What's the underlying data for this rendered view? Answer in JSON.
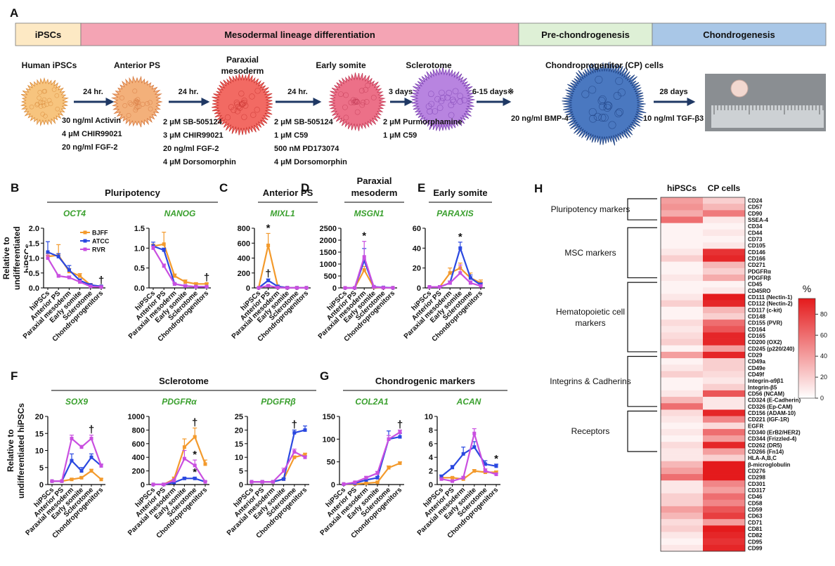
{
  "scheme": {
    "panel": "A",
    "stages": [
      {
        "label": "iPSCs",
        "color": "#fde9c4"
      },
      {
        "label": "Mesodermal lineage differentiation",
        "color": "#f4a4b4"
      },
      {
        "label": "Pre-chondrogenesis",
        "color": "#def0d6"
      },
      {
        "label": "Chondrogenesis",
        "color": "#a9c7e7"
      }
    ],
    "cells": [
      "Human iPSCs",
      "Anterior PS",
      "Paraxial mesoderm",
      "Early somite",
      "Sclerotome",
      "Chondroprogenitor (CP) cells"
    ],
    "steps": [
      {
        "time": "24 hr.",
        "conditions": [
          "30 ng/ml Activin",
          "4 μM  CHIR99021",
          "20 ng/ml FGF-2"
        ]
      },
      {
        "time": "24 hr.",
        "conditions": [
          "2 μM  SB-505124",
          "3 μM  CHIR99021",
          "20 ng/ml FGF-2",
          "4 μM Dorsomorphin"
        ]
      },
      {
        "time": "24 hr.",
        "conditions": [
          "2 μM  SB-505124",
          "1 μM  C59",
          "500 nM PD173074",
          "4 μM Dorsomorphin"
        ]
      },
      {
        "time": "3 days",
        "conditions": [
          "2 μM  Purmorphamine",
          "1 μM  C59"
        ]
      },
      {
        "time": "6-15 days※",
        "conditions": [
          "20 ng/ml BMP-4"
        ]
      },
      {
        "time": "28 days",
        "conditions": [
          "10 ng/ml TGF-β3"
        ]
      }
    ]
  },
  "categories": [
    "hiPSCs",
    "Anterior PS",
    "Paraxial mesoderm",
    "Early somite",
    "Sclerotome",
    "Chondroprogenitors"
  ],
  "legend": [
    {
      "name": "BJFF",
      "color": "#f39a2c"
    },
    {
      "name": "ATCC",
      "color": "#2a48e0"
    },
    {
      "name": "RVR",
      "color": "#c94fe0"
    }
  ],
  "chart_data": [
    {
      "type": "line",
      "panel": "B",
      "panel_title": "Pluripotency",
      "gene": "OCT4",
      "ylabel": "Relative to undifferentiated hiPSCs",
      "show_legend": true,
      "ylim": [
        0,
        2
      ],
      "yticks": [
        {
          "value": 0,
          "label": "0.0"
        },
        0.5,
        {
          "value": 1,
          "label": "1.0"
        },
        1.5,
        {
          "value": 2,
          "label": "2.0"
        }
      ],
      "series": [
        {
          "values": [
            1.05,
            1.1,
            0.55,
            0.4,
            0.1,
            0.05
          ],
          "errors": [
            0.1,
            0.35,
            0.1,
            0.08,
            0.05,
            0.02
          ]
        },
        {
          "values": [
            1.2,
            1.05,
            0.6,
            0.25,
            0.1,
            0.05
          ],
          "errors": [
            0.35,
            0.1,
            0.15,
            0.05,
            0.03,
            0.02
          ]
        },
        {
          "values": [
            1.0,
            0.4,
            0.35,
            0.2,
            0.05,
            0.03
          ],
          "errors": [
            0.1,
            0.05,
            0.05,
            0.05,
            0.02,
            0.01
          ]
        }
      ],
      "annotations": [
        {
          "text": "†",
          "category": "Chondroprogenitors",
          "series": "BJFF"
        }
      ]
    },
    {
      "type": "line",
      "gene": "NANOG",
      "ylim": [
        0,
        1.5
      ],
      "yticks": [
        {
          "value": 0,
          "label": "0.0"
        },
        0.5,
        {
          "value": 1,
          "label": "1.0"
        },
        1.5
      ],
      "series": [
        {
          "values": [
            1.05,
            1.1,
            0.3,
            0.15,
            0.1,
            0.1
          ],
          "errors": [
            0.05,
            0.3,
            0.05,
            0.05,
            0.03,
            0.02
          ]
        },
        {
          "values": [
            1.05,
            0.95,
            0.1,
            0.05,
            0.03,
            0.03
          ],
          "errors": [
            0.1,
            0.05,
            0.02,
            0.02,
            0.01,
            0.01
          ]
        },
        {
          "values": [
            1.0,
            0.55,
            0.1,
            0.05,
            0.03,
            0.03
          ],
          "errors": [
            0.05,
            0.05,
            0.02,
            0.01,
            0.01,
            0.01
          ]
        }
      ],
      "annotations": [
        {
          "text": "†",
          "category": "Chondroprogenitors",
          "series": "BJFF"
        }
      ]
    },
    {
      "type": "line",
      "panel": "C",
      "panel_title": "Anterior PS",
      "gene": "MIXL1",
      "ylim": [
        0,
        800
      ],
      "yticks": [
        0,
        200,
        400,
        600,
        800
      ],
      "series": [
        {
          "values": [
            1,
            570,
            20,
            3,
            2,
            2
          ],
          "errors": [
            0,
            160,
            10,
            1,
            1,
            1
          ]
        },
        {
          "values": [
            1,
            100,
            20,
            3,
            2,
            2
          ],
          "errors": [
            0,
            20,
            5,
            1,
            1,
            1
          ]
        },
        {
          "values": [
            1,
            30,
            5,
            2,
            1,
            1
          ],
          "errors": [
            0,
            10,
            2,
            1,
            0,
            0
          ]
        }
      ],
      "annotations": [
        {
          "text": "*",
          "category": "Anterior PS",
          "series": "BJFF"
        },
        {
          "text": "†",
          "category": "Anterior PS",
          "series": "ATCC"
        }
      ]
    },
    {
      "type": "line",
      "panel": "D",
      "panel_title": "Paraxial mesoderm",
      "gene": "MSGN1",
      "ylim": [
        0,
        2500
      ],
      "yticks": [
        0,
        500,
        1000,
        1500,
        2000,
        2500
      ],
      "series": [
        {
          "values": [
            1,
            1,
            750,
            30,
            10,
            5
          ],
          "errors": [
            0,
            0,
            150,
            10,
            5,
            2
          ]
        },
        {
          "values": [
            1,
            1,
            1150,
            50,
            20,
            5
          ],
          "errors": [
            0,
            0,
            500,
            15,
            5,
            2
          ]
        },
        {
          "values": [
            1,
            1,
            1300,
            40,
            10,
            5
          ],
          "errors": [
            0,
            0,
            650,
            10,
            5,
            2
          ]
        }
      ],
      "annotations": [
        {
          "text": "*",
          "category": "Paraxial mesoderm",
          "series": "RVR"
        }
      ]
    },
    {
      "type": "line",
      "panel": "E",
      "panel_title": "Early somite",
      "gene": "PARAXIS",
      "ylim": [
        0,
        60
      ],
      "yticks": [
        0,
        20,
        40,
        60
      ],
      "series": [
        {
          "values": [
            1,
            1,
            15,
            20,
            10,
            5
          ],
          "errors": [
            0,
            0,
            5,
            5,
            5,
            3
          ]
        },
        {
          "values": [
            1,
            1,
            5,
            40,
            10,
            3
          ],
          "errors": [
            0,
            0,
            2,
            6,
            3,
            2
          ]
        },
        {
          "values": [
            1,
            1,
            5,
            15,
            5,
            2
          ],
          "errors": [
            0,
            0,
            2,
            8,
            2,
            1
          ]
        }
      ],
      "annotations": [
        {
          "text": "*",
          "category": "Early somite",
          "series": "ATCC"
        }
      ]
    },
    {
      "type": "line",
      "panel": "F",
      "panel_title": "Sclerotome",
      "gene": "SOX9",
      "ylabel": "Relative to undifferentiated hiPSCs",
      "ylim": [
        0,
        20
      ],
      "yticks": [
        0,
        5,
        10,
        15,
        20
      ],
      "series": [
        {
          "values": [
            1,
            1,
            1.5,
            2,
            4,
            1.5
          ],
          "errors": [
            0,
            0,
            0.3,
            0.3,
            0.5,
            0.3
          ]
        },
        {
          "values": [
            1,
            1,
            7,
            4,
            8,
            5.5
          ],
          "errors": [
            0,
            0,
            2,
            1,
            1,
            0.5
          ]
        },
        {
          "values": [
            1,
            1,
            13.5,
            11,
            13.5,
            5.5
          ],
          "errors": [
            0,
            0,
            1,
            0.5,
            1,
            0.5
          ]
        }
      ],
      "annotations": [
        {
          "text": "†",
          "category": "Sclerotome",
          "series": "RVR"
        }
      ]
    },
    {
      "type": "line",
      "gene": "PDGFRα",
      "ylim": [
        0,
        1000
      ],
      "yticks": [
        0,
        200,
        400,
        600,
        800,
        1000
      ],
      "series": [
        {
          "values": [
            1,
            1,
            80,
            550,
            700,
            300
          ],
          "errors": [
            0,
            0,
            30,
            120,
            130,
            60
          ]
        },
        {
          "values": [
            1,
            1,
            30,
            90,
            90,
            40
          ],
          "errors": [
            0,
            0,
            10,
            15,
            15,
            10
          ]
        },
        {
          "values": [
            1,
            1,
            60,
            380,
            280,
            40
          ],
          "errors": [
            0,
            0,
            20,
            120,
            80,
            10
          ]
        }
      ],
      "annotations": [
        {
          "text": "†",
          "category": "Sclerotome",
          "series": "BJFF"
        },
        {
          "text": "*",
          "category": "Sclerotome",
          "series": "RVR"
        },
        {
          "text": "*",
          "category": "Sclerotome",
          "series": "ATCC"
        }
      ]
    },
    {
      "type": "line",
      "gene": "PDGFRβ",
      "ylim": [
        0,
        25
      ],
      "yticks": [
        0,
        5,
        10,
        15,
        20,
        25
      ],
      "series": [
        {
          "values": [
            1,
            1,
            1,
            2,
            10,
            11
          ],
          "errors": [
            0,
            0,
            0.2,
            0.3,
            0.5,
            0.5
          ]
        },
        {
          "values": [
            1,
            1,
            1,
            2,
            19,
            20
          ],
          "errors": [
            0,
            0,
            0.2,
            0.3,
            1,
            1.5
          ]
        },
        {
          "values": [
            1,
            1,
            1,
            5,
            12,
            10
          ],
          "errors": [
            0,
            0,
            0.2,
            1,
            1,
            0.5
          ]
        }
      ],
      "annotations": [
        {
          "text": "†",
          "category": "Sclerotome",
          "series": "ATCC"
        }
      ]
    },
    {
      "type": "line",
      "panel": "G",
      "panel_title": "Chondrogenic markers",
      "gene": "COL2A1",
      "ylim": [
        0,
        150
      ],
      "yticks": [
        0,
        50,
        100,
        150
      ],
      "series": [
        {
          "values": [
            1,
            1,
            3,
            5,
            37,
            47
          ],
          "errors": [
            0,
            0,
            1,
            1,
            4,
            3
          ]
        },
        {
          "values": [
            1,
            3,
            10,
            15,
            100,
            105
          ],
          "errors": [
            0,
            1,
            2,
            3,
            18,
            8
          ]
        },
        {
          "values": [
            1,
            5,
            15,
            25,
            100,
            115
          ],
          "errors": [
            0,
            1,
            3,
            4,
            8,
            5
          ]
        }
      ],
      "annotations": [
        {
          "text": "†",
          "category": "Chondroprogenitors",
          "series": "RVR"
        }
      ]
    },
    {
      "type": "line",
      "gene": "ACAN",
      "ylim": [
        0,
        10
      ],
      "yticks": [
        0,
        2,
        4,
        6,
        8,
        10
      ],
      "series": [
        {
          "values": [
            1.0,
            1.0,
            0.8,
            2,
            1.8,
            1.8
          ],
          "errors": [
            0.1,
            0.1,
            0.1,
            0.2,
            0.2,
            0.2
          ]
        },
        {
          "values": [
            1.2,
            2.5,
            4.5,
            5.5,
            3,
            2.7
          ],
          "errors": [
            0.2,
            0.3,
            1,
            0.8,
            0.5,
            0.3
          ]
        },
        {
          "values": [
            0.8,
            0.5,
            1.0,
            7.5,
            2,
            1.5
          ],
          "errors": [
            0.1,
            0.1,
            0.2,
            0.7,
            0.3,
            0.2
          ]
        }
      ],
      "annotations": [
        {
          "text": "*",
          "category": "Chondroprogenitors",
          "series": "ATCC"
        }
      ]
    },
    {
      "type": "heatmap",
      "panel": "H",
      "columns": [
        "hiPSCs",
        "CP cells"
      ],
      "rows": [
        "CD24",
        "CD57",
        "CD90",
        "SSEA-4",
        "CD34",
        "CD44",
        "CD73",
        "CD105",
        "CD146",
        "CD166",
        "CD271",
        "PDGFRα",
        "PDGFRβ",
        "CD45",
        "CD45RO",
        "CD111 (Nectin-1)",
        "CD112 (Nectin-2)",
        "CD117 (c-kit)",
        "CD148",
        "CD155 (PVR)",
        "CD164",
        "CD165",
        "CD200 (OX2)",
        "CD245 (p220/240)",
        "CD29",
        "CD49a",
        "CD49e",
        "CD49f",
        "Integrin-α9β1",
        "Integrin-β5",
        "CD56 (NCAM)",
        "CD324 (E-Cadherin)",
        "CD326 (Ep-CAM)",
        "CD156 (ADAM-10)",
        "CD221 (IGF-1R)",
        "EGFR",
        "CD340 (ErB2/HER2)",
        "CD344 (Frizzled-4)",
        "CD262 (DR5)",
        "CD266 (Fn14)",
        "HLA-A,B,C",
        "β-microglobulin",
        "CD276",
        "CD298",
        "CD301",
        "CD317",
        "CD46",
        "CD58",
        "CD59",
        "CD63",
        "CD71",
        "CD81",
        "CD82",
        "CD95",
        "CD99"
      ],
      "values": [
        [
          40,
          20
        ],
        [
          45,
          30
        ],
        [
          35,
          55
        ],
        [
          60,
          10
        ],
        [
          5,
          5
        ],
        [
          5,
          10
        ],
        [
          5,
          5
        ],
        [
          5,
          10
        ],
        [
          10,
          85
        ],
        [
          20,
          90
        ],
        [
          5,
          30
        ],
        [
          5,
          20
        ],
        [
          10,
          35
        ],
        [
          5,
          5
        ],
        [
          5,
          10
        ],
        [
          10,
          95
        ],
        [
          20,
          90
        ],
        [
          5,
          30
        ],
        [
          5,
          20
        ],
        [
          15,
          60
        ],
        [
          10,
          70
        ],
        [
          15,
          90
        ],
        [
          20,
          90
        ],
        [
          5,
          40
        ],
        [
          40,
          90
        ],
        [
          5,
          20
        ],
        [
          10,
          20
        ],
        [
          20,
          15
        ],
        [
          5,
          10
        ],
        [
          5,
          20
        ],
        [
          10,
          70
        ],
        [
          30,
          10
        ],
        [
          60,
          10
        ],
        [
          15,
          90
        ],
        [
          10,
          50
        ],
        [
          5,
          15
        ],
        [
          10,
          60
        ],
        [
          5,
          40
        ],
        [
          15,
          90
        ],
        [
          10,
          40
        ],
        [
          10,
          20
        ],
        [
          30,
          95
        ],
        [
          40,
          95
        ],
        [
          60,
          95
        ],
        [
          10,
          50
        ],
        [
          10,
          40
        ],
        [
          20,
          60
        ],
        [
          20,
          50
        ],
        [
          40,
          70
        ],
        [
          30,
          80
        ],
        [
          15,
          40
        ],
        [
          20,
          95
        ],
        [
          10,
          90
        ],
        [
          5,
          85
        ],
        [
          10,
          90
        ]
      ],
      "groups": [
        "Pluripotency markers",
        "MSC markers",
        "Hematopoietic cell markers",
        "Integrins & Cadherins",
        "Receptors"
      ],
      "clim": [
        0,
        95
      ],
      "colormap": [
        "#ffffff",
        "#e41a1c"
      ],
      "colorbar_label": "%",
      "colorbar_ticks": [
        0,
        20,
        40,
        60,
        80
      ]
    }
  ]
}
